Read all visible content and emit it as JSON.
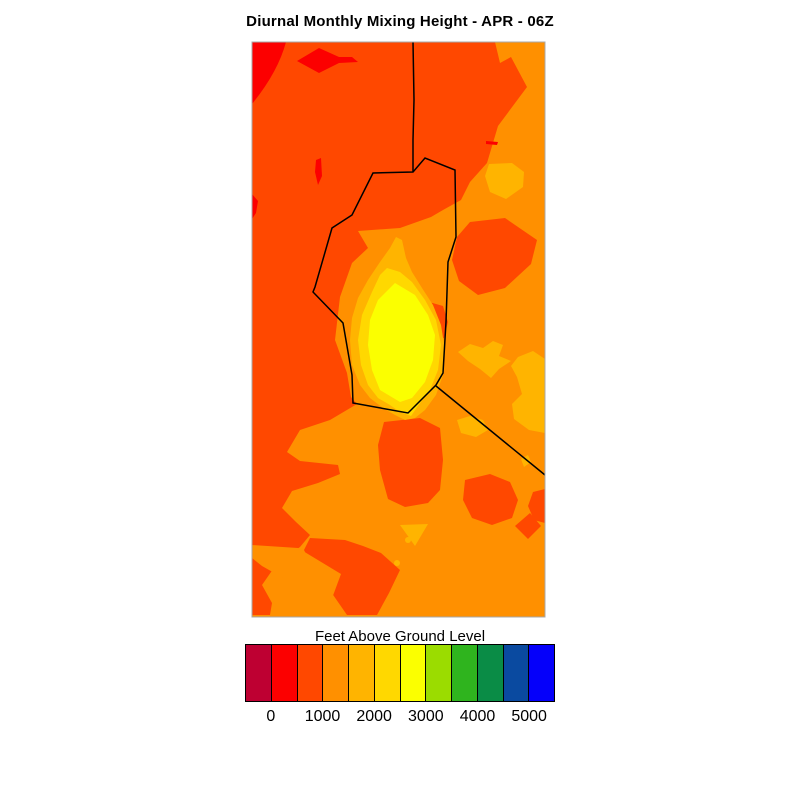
{
  "title": "Diurnal Monthly Mixing Height - APR - 06Z",
  "colorbar": {
    "label": "Feet Above Ground Level",
    "ticks": [
      "0",
      "1000",
      "2000",
      "3000",
      "4000",
      "5000"
    ],
    "cell_colors": [
      "#BE0032",
      "#FC0000",
      "#FF4800",
      "#FF9000",
      "#FFB400",
      "#FFD800",
      "#FBFF00",
      "#9BDC00",
      "#2FB41E",
      "#0A8C46",
      "#0A4AA0",
      "#0500FA"
    ]
  },
  "palette": {
    "crimson": "#BE0032",
    "red": "#FC0000",
    "orange_red": "#FF4800",
    "orange": "#FF9000",
    "amber": "#FFB400",
    "gold": "#FFD800",
    "yellow": "#FBFF00",
    "yellow_green": "#9BDC00",
    "green": "#2FB41E",
    "sea_green": "#0A8C46",
    "dark_blue": "#0A4AA0",
    "blue": "#0500FA",
    "boundary": "#000000",
    "frame": "#a8a8a8"
  },
  "chart_data": {
    "type": "heatmap",
    "subtype": "filled-contour-map",
    "title": "Diurnal Monthly Mixing Height - APR - 06Z",
    "colorbar_label": "Feet Above Ground Level",
    "units": "feet above ground level",
    "month": "APR",
    "hour": "06Z",
    "tick_values_ft": [
      0,
      1000,
      2000,
      3000,
      4000,
      5000
    ],
    "contour_interval_ft": 500,
    "legend_position": "bottom",
    "levels": [
      {
        "range_ft": "< 0",
        "color": "#BE0032"
      },
      {
        "range_ft": "0-500",
        "color": "#FC0000"
      },
      {
        "range_ft": "500-1000",
        "color": "#FF4800"
      },
      {
        "range_ft": "1000-1500",
        "color": "#FF9000"
      },
      {
        "range_ft": "1500-2000",
        "color": "#FFB400"
      },
      {
        "range_ft": "2000-2500",
        "color": "#FFD800"
      },
      {
        "range_ft": "2500-3000",
        "color": "#FBFF00"
      },
      {
        "range_ft": "3000-3500",
        "color": "#9BDC00"
      },
      {
        "range_ft": "3500-4000",
        "color": "#2FB41E"
      },
      {
        "range_ft": "4000-4500",
        "color": "#0A8C46"
      },
      {
        "range_ft": "4500-5000",
        "color": "#0A4AA0"
      },
      {
        "range_ft": "> 5000",
        "color": "#0500FA"
      }
    ],
    "visible_value_range_ft": [
      0,
      3000
    ],
    "map_features": [
      "vertical boundary line from top center joining a closed district/county polygon in mid-map",
      "diagonal boundary line from polygon bottom vertex to right edge"
    ],
    "field_summary": [
      "west half of domain mostly 500-1000 ft with small 0-500 ft pockets in the northwest",
      "east half of domain mostly 1000-1500 ft with scattered 500-1000 ft blobs and 1500-2000 ft patches",
      "elongated maximum bullseye near center reaching 2500-3000 ft (yellow core) inside the outlined polygon"
    ]
  }
}
